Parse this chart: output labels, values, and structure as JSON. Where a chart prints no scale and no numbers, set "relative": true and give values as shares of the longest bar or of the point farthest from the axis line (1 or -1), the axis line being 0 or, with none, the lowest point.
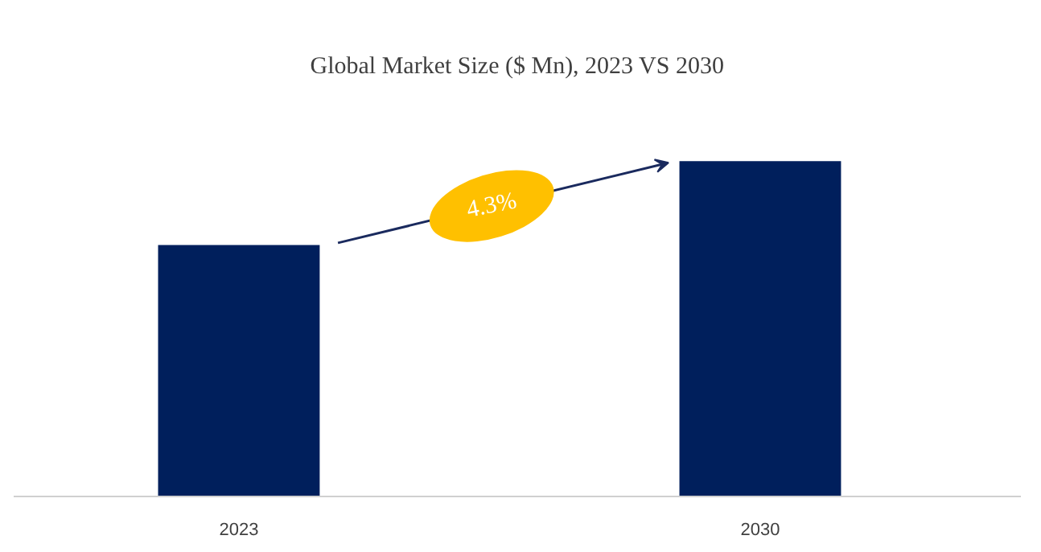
{
  "chart_data": {
    "type": "bar",
    "title": "Global Market Size ($ Mn), 2023 VS 2030",
    "categories": [
      "2023",
      "2030"
    ],
    "values": [
      0.75,
      1
    ],
    "relative": true,
    "color": "#001f5c",
    "annotations": [
      "4.3%"
    ],
    "grid": false
  }
}
